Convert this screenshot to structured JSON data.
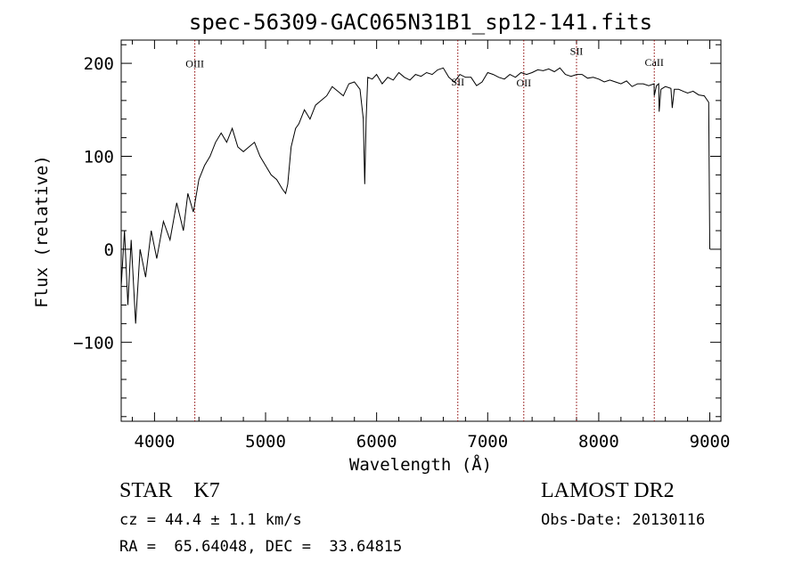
{
  "chart_data": {
    "type": "line",
    "title": "spec-56309-GAC065N31B1_sp12-141.fits",
    "xlabel": "Wavelength (Å)",
    "ylabel": "Flux (relative)",
    "xlim": [
      3700,
      9100
    ],
    "ylim": [
      -185,
      225
    ],
    "xticks": [
      4000,
      5000,
      6000,
      7000,
      8000,
      9000
    ],
    "yticks": [
      -100,
      0,
      100,
      200
    ],
    "grid": false,
    "series": [
      {
        "x": [
          3700,
          3730,
          3760,
          3790,
          3830,
          3870,
          3920,
          3970,
          4020,
          4080,
          4140,
          4200,
          4260,
          4300,
          4350,
          4400,
          4450,
          4500,
          4550,
          4600,
          4650,
          4700,
          4750,
          4800,
          4850,
          4900,
          4950,
          5000,
          5050,
          5100,
          5150,
          5180,
          5200,
          5230,
          5270,
          5300,
          5350,
          5400,
          5450,
          5500,
          5550,
          5600,
          5650,
          5700,
          5750,
          5800,
          5850,
          5880,
          5893,
          5906,
          5920,
          5960,
          6000,
          6050,
          6100,
          6150,
          6200,
          6250,
          6300,
          6350,
          6400,
          6450,
          6500,
          6550,
          6600,
          6650,
          6700,
          6750,
          6800,
          6850,
          6900,
          6950,
          7000,
          7050,
          7100,
          7150,
          7200,
          7250,
          7300,
          7350,
          7400,
          7450,
          7500,
          7550,
          7600,
          7650,
          7700,
          7750,
          7800,
          7850,
          7900,
          7950,
          8000,
          8050,
          8100,
          8150,
          8200,
          8250,
          8300,
          8350,
          8400,
          8450,
          8498,
          8500,
          8520,
          8540,
          8544,
          8560,
          8600,
          8650,
          8662,
          8680,
          8720,
          8760,
          8800,
          8850,
          8900,
          8950,
          8990,
          9000
        ],
        "y": [
          -40,
          20,
          -60,
          10,
          -80,
          0,
          -30,
          20,
          -10,
          30,
          10,
          50,
          20,
          60,
          40,
          75,
          90,
          100,
          115,
          125,
          115,
          130,
          110,
          105,
          110,
          115,
          100,
          90,
          80,
          75,
          65,
          60,
          70,
          110,
          130,
          135,
          150,
          140,
          155,
          160,
          165,
          175,
          170,
          165,
          178,
          180,
          172,
          140,
          70,
          140,
          185,
          183,
          188,
          178,
          185,
          182,
          190,
          185,
          182,
          188,
          186,
          190,
          188,
          193,
          195,
          185,
          180,
          188,
          185,
          185,
          176,
          180,
          190,
          188,
          185,
          183,
          188,
          185,
          190,
          188,
          190,
          193,
          192,
          194,
          191,
          195,
          188,
          186,
          188,
          188,
          184,
          185,
          183,
          180,
          182,
          180,
          178,
          181,
          175,
          178,
          178,
          176,
          178,
          165,
          176,
          178,
          148,
          172,
          175,
          173,
          152,
          172,
          172,
          170,
          168,
          170,
          166,
          165,
          158,
          0
        ]
      }
    ],
    "annotations": [
      {
        "label": "OIII",
        "x": 4363,
        "label_y": 196
      },
      {
        "label": "SII",
        "x": 6731,
        "label_y": 176
      },
      {
        "label": "OII",
        "x": 7325,
        "label_y": 175
      },
      {
        "label": "SII",
        "x": 7800,
        "label_y": 209
      },
      {
        "label": "CaII",
        "x": 8500,
        "label_y": 197
      }
    ],
    "colors": {
      "line": "#000000",
      "marker_line": "#8b0000",
      "text": "#000000",
      "background": "#ffffff"
    }
  },
  "info": {
    "class_line": "STAR    K7",
    "survey": "LAMOST DR2",
    "cz_line": "cz = 44.4 ± 1.1 km/s",
    "obs_date": "Obs-Date: 20130116",
    "radec_line": "RA =  65.64048, DEC =  33.64815"
  }
}
